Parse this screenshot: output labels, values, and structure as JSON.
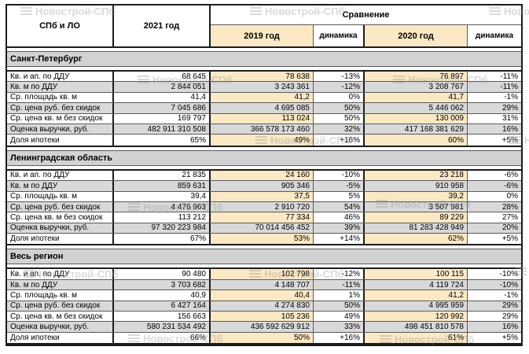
{
  "watermark": {
    "text": "Новострой-СПб"
  },
  "colors": {
    "cream": "#FBE8C4",
    "row_gray": "#D9D9D9",
    "band_gray": "#D2D2D2",
    "border_dark": "#1C1C1C",
    "border_thin": "#5A5A5A"
  },
  "chart_data": {
    "type": "table",
    "header": {
      "region": "СПб и ЛО",
      "year_2021": "2021 год",
      "comparison": "Сравнение",
      "year_2019": "2019 год",
      "dynamics_1": "динамика",
      "year_2020": "2020 год",
      "dynamics_2": "динамика"
    },
    "sections": [
      {
        "title": "Санкт-Петербург",
        "rows": [
          {
            "label": "Кв. и ап. по ДДУ",
            "y2021": "68 645",
            "y2019": "78 638",
            "dyn_2019": "-13%",
            "y2020": "76 897",
            "dyn_2020": "-11%"
          },
          {
            "label": "Кв. м по ДДУ",
            "y2021": "2 844 051",
            "y2019": "3 243 361",
            "dyn_2019": "-12%",
            "y2020": "3 208 767",
            "dyn_2020": "-11%"
          },
          {
            "label": "Ср. площадь кв. м",
            "y2021": "41,4",
            "y2019": "41,2",
            "dyn_2019": "0%",
            "y2020": "41,7",
            "dyn_2020": "-1%"
          },
          {
            "label": "Ср. цена руб. без скидок",
            "y2021": "7 045 686",
            "y2019": "4 695 085",
            "dyn_2019": "50%",
            "y2020": "5 446 062",
            "dyn_2020": "29%"
          },
          {
            "label": "Ср. цена кв. м без скидок",
            "y2021": "169 797",
            "y2019": "113 024",
            "dyn_2019": "50%",
            "y2020": "130 009",
            "dyn_2020": "31%"
          },
          {
            "label": "Оценка выручки, руб.",
            "y2021": "482 911 310 508",
            "y2019": "366 578 173 460",
            "dyn_2019": "32%",
            "y2020": "417 168 381 629",
            "dyn_2020": "16%"
          },
          {
            "label": "Доля ипотеки",
            "y2021": "65%",
            "y2019": "49%",
            "dyn_2019": "+16%",
            "y2020": "60%",
            "dyn_2020": "+5%"
          }
        ]
      },
      {
        "title": "Ленинградская область",
        "rows": [
          {
            "label": "Кв. и ап. по ДДУ",
            "y2021": "21 835",
            "y2019": "24 160",
            "dyn_2019": "-10%",
            "y2020": "23 218",
            "dyn_2020": "-6%"
          },
          {
            "label": "Кв. м по ДДУ",
            "y2021": "859 631",
            "y2019": "905 346",
            "dyn_2019": "-5%",
            "y2020": "910 958",
            "dyn_2020": "-6%"
          },
          {
            "label": "Ср. площадь кв. м",
            "y2021": "39,4",
            "y2019": "37,5",
            "dyn_2019": "5%",
            "y2020": "39,2",
            "dyn_2020": "0%"
          },
          {
            "label": "Ср. цена руб. без скидок",
            "y2021": "4 476 963",
            "y2019": "2 910 720",
            "dyn_2019": "54%",
            "y2020": "3 507 981",
            "dyn_2020": "28%"
          },
          {
            "label": "Ср. цена кв. м без скидок",
            "y2021": "113 212",
            "y2019": "77 334",
            "dyn_2019": "46%",
            "y2020": "89 229",
            "dyn_2020": "27%"
          },
          {
            "label": "Оценка выручки, руб.",
            "y2021": "97 320 223 984",
            "y2019": "70 014 456 452",
            "dyn_2019": "39%",
            "y2020": "81 283 428 949",
            "dyn_2020": "20%"
          },
          {
            "label": "Доля ипотеки",
            "y2021": "67%",
            "y2019": "53%",
            "dyn_2019": "+14%",
            "y2020": "62%",
            "dyn_2020": "+5%"
          }
        ]
      },
      {
        "title": "Весь регион",
        "rows": [
          {
            "label": "Кв. и ап. по ДДУ",
            "y2021": "90 480",
            "y2019": "102 798",
            "dyn_2019": "-12%",
            "y2020": "100 115",
            "dyn_2020": "-10%"
          },
          {
            "label": "Кв. м по ДДУ",
            "y2021": "3 703 682",
            "y2019": "4 148 707",
            "dyn_2019": "-11%",
            "y2020": "4 119 724",
            "dyn_2020": "-10%"
          },
          {
            "label": "Ср. площадь кв. м",
            "y2021": "40,9",
            "y2019": "40,4",
            "dyn_2019": "1%",
            "y2020": "41,2",
            "dyn_2020": "-1%"
          },
          {
            "label": "Ср. цена руб. без скидок",
            "y2021": "6 427 164",
            "y2019": "4 274 830",
            "dyn_2019": "50%",
            "y2020": "4 995 959",
            "dyn_2020": "29%"
          },
          {
            "label": "Ср. цена кв. м без скидок",
            "y2021": "156 663",
            "y2019": "105 236",
            "dyn_2019": "49%",
            "y2020": "120 992",
            "dyn_2020": "29%"
          },
          {
            "label": "Оценка выручки, руб.",
            "y2021": "580 231 534 492",
            "y2019": "436 592 629 912",
            "dyn_2019": "33%",
            "y2020": "498 451 810 578",
            "dyn_2020": "16%"
          },
          {
            "label": "Доля ипотеки",
            "y2021": "66%",
            "y2019": "50%",
            "dyn_2019": "+16%",
            "y2020": "61%",
            "dyn_2020": "+5%"
          }
        ]
      }
    ]
  }
}
